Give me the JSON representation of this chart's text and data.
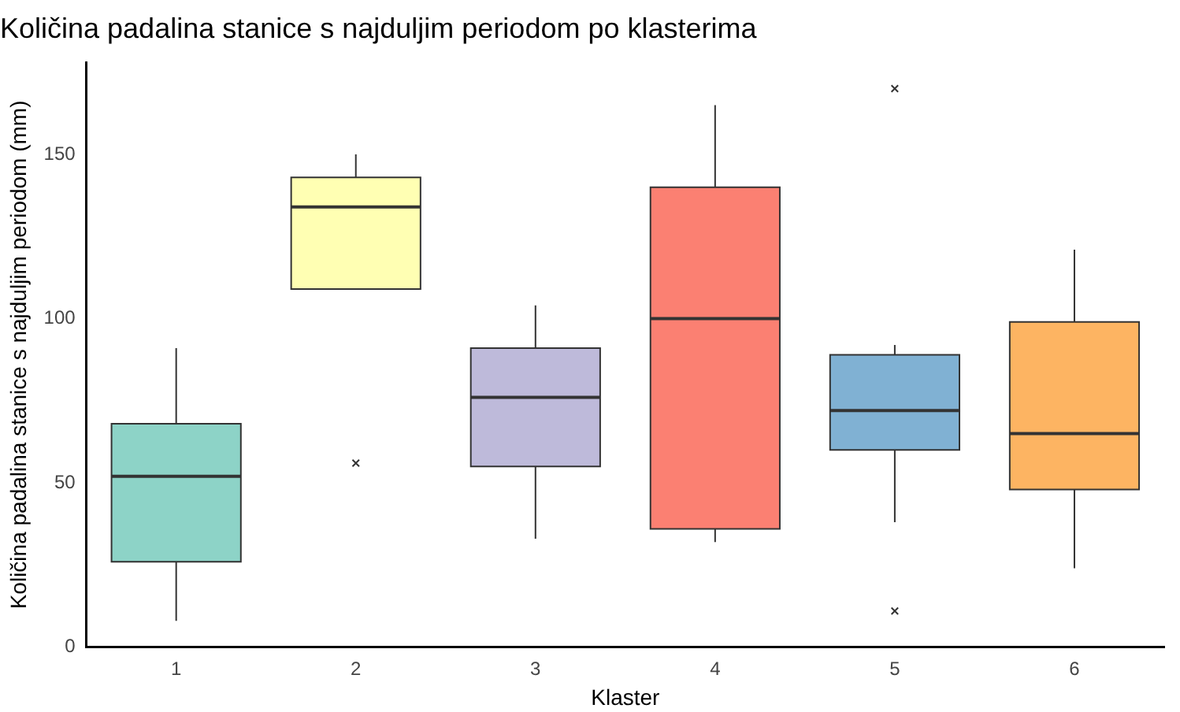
{
  "chart_data": {
    "type": "box",
    "title": "Količina padalina stanice s najduljim periodom po klasterima",
    "xlabel": "Klaster",
    "ylabel": "Količina padalina stanice s najduljim periodom (mm)",
    "categories": [
      "1",
      "2",
      "3",
      "4",
      "5",
      "6"
    ],
    "colors": [
      "#8dd3c7",
      "#ffffb3",
      "#bebada",
      "#fb8072",
      "#80b1d3",
      "#fdb462"
    ],
    "boxes": [
      {
        "low": 8,
        "q1": 26,
        "median": 52,
        "q3": 68,
        "high": 91
      },
      {
        "low": 109,
        "q1": 109,
        "median": 134,
        "q3": 143,
        "high": 150,
        "outliers": [
          56
        ]
      },
      {
        "low": 33,
        "q1": 55,
        "median": 76,
        "q3": 91,
        "high": 104
      },
      {
        "low": 32,
        "q1": 36,
        "median": 100,
        "q3": 140,
        "high": 165
      },
      {
        "low": 38,
        "q1": 60,
        "median": 72,
        "q3": 89,
        "high": 92,
        "outliers": [
          170,
          11
        ]
      },
      {
        "low": 24,
        "q1": 48,
        "median": 65,
        "q3": 99,
        "high": 121
      }
    ],
    "marker": "cross",
    "ylim": [
      0,
      178
    ],
    "yticks": [
      0,
      50,
      100,
      150
    ]
  }
}
